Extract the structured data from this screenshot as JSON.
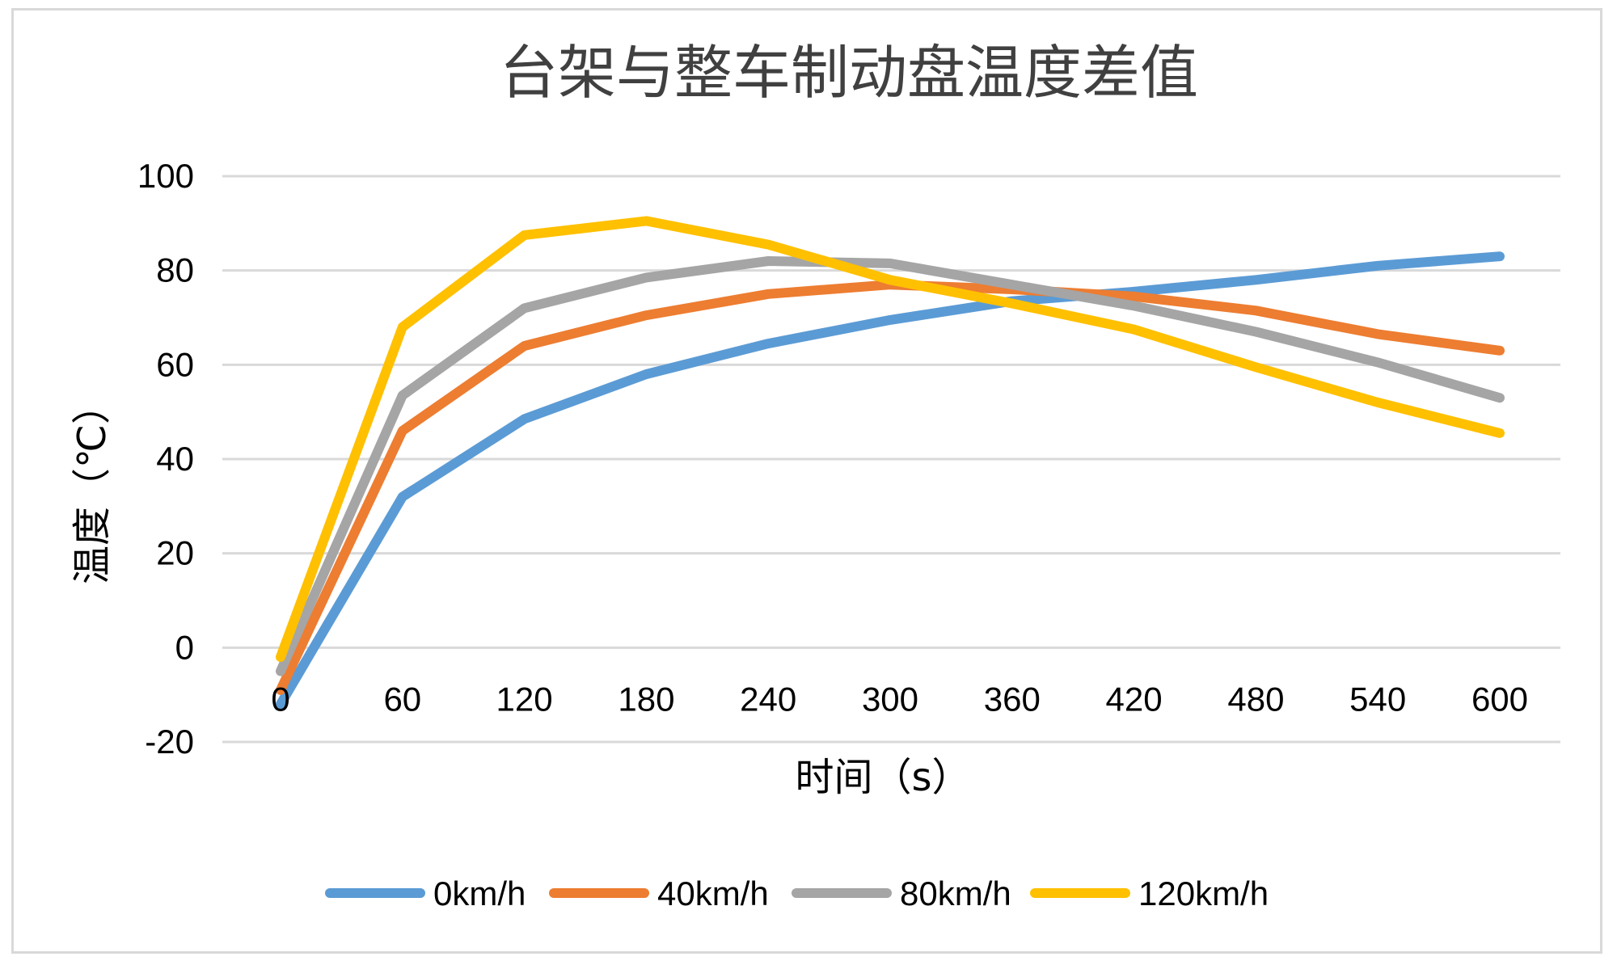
{
  "chart_data": {
    "type": "line",
    "title": "台架与整车制动盘温度差值",
    "xlabel": "时间（s）",
    "ylabel": "温度（℃）",
    "x": [
      0,
      60,
      120,
      180,
      240,
      300,
      360,
      420,
      480,
      540,
      600
    ],
    "x_tick_labels": [
      "0",
      "60",
      "120",
      "180",
      "240",
      "300",
      "360",
      "420",
      "480",
      "540",
      "600"
    ],
    "y_ticks": [
      100,
      80,
      60,
      40,
      20,
      0,
      -20
    ],
    "y_tick_labels": [
      "100",
      "80",
      "60",
      "40",
      "20",
      "0",
      "-20"
    ],
    "ylim": [
      -20,
      100
    ],
    "grid": true,
    "legend_position": "bottom",
    "series": [
      {
        "name": "0km/h",
        "color": "#5b9bd5",
        "values": [
          -12,
          32,
          48.5,
          58,
          64.5,
          69.5,
          73.5,
          75.5,
          78,
          81,
          83
        ]
      },
      {
        "name": "40km/h",
        "color": "#ed7d31",
        "values": [
          -9,
          46,
          64,
          70.5,
          75,
          77,
          76,
          74.5,
          71.5,
          66.5,
          63
        ]
      },
      {
        "name": "80km/h",
        "color": "#a5a5a5",
        "values": [
          -5,
          53.5,
          72,
          78.5,
          82,
          81.5,
          77,
          72.5,
          67,
          60.5,
          53
        ]
      },
      {
        "name": "120km/h",
        "color": "#ffc000",
        "values": [
          -2,
          68,
          87.5,
          90.5,
          85.5,
          78,
          73,
          67.5,
          59.5,
          52,
          45.5
        ]
      }
    ]
  }
}
